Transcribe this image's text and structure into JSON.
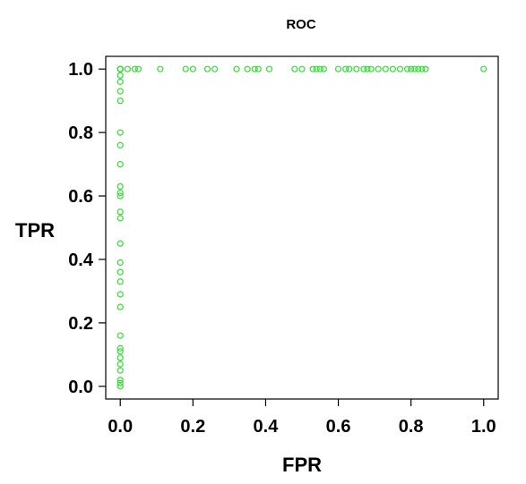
{
  "chart_data": {
    "type": "scatter",
    "title": "ROC",
    "xlabel": "FPR",
    "ylabel": "TPR",
    "xlim": [
      -0.04,
      1.04
    ],
    "ylim": [
      -0.04,
      1.04
    ],
    "xticks": [
      0.0,
      0.2,
      0.4,
      0.6,
      0.8,
      1.0
    ],
    "yticks": [
      0.0,
      0.2,
      0.4,
      0.6,
      0.8,
      1.0
    ],
    "xtick_labels": [
      "0.0",
      "0.2",
      "0.4",
      "0.6",
      "0.8",
      "1.0"
    ],
    "ytick_labels": [
      "0.0",
      "0.2",
      "0.4",
      "0.6",
      "0.8",
      "1.0"
    ],
    "grid": false,
    "marker": "open-circle",
    "point_color": "#33dd33",
    "series": [
      {
        "x": [
          0,
          0,
          0,
          0,
          0,
          0,
          0,
          0,
          0,
          0,
          0,
          0,
          0,
          0,
          0,
          0,
          0,
          0,
          0,
          0,
          0,
          0,
          0,
          0,
          0,
          0,
          0,
          0,
          0,
          0,
          0,
          0,
          0.02,
          0.04,
          0.05,
          0.11,
          0.18,
          0.2,
          0.24,
          0.26,
          0.32,
          0.35,
          0.37,
          0.38,
          0.41,
          0.48,
          0.5,
          0.53,
          0.54,
          0.55,
          0.56,
          0.6,
          0.62,
          0.63,
          0.65,
          0.67,
          0.68,
          0.69,
          0.71,
          0.73,
          0.75,
          0.77,
          0.79,
          0.8,
          0.81,
          0.82,
          0.83,
          0.84,
          1.0
        ],
        "y": [
          0.0,
          0.01,
          0.02,
          0.05,
          0.07,
          0.09,
          0.11,
          0.12,
          0.16,
          0.25,
          0.29,
          0.33,
          0.36,
          0.39,
          0.45,
          0.53,
          0.55,
          0.6,
          0.61,
          0.63,
          0.7,
          0.76,
          0.8,
          0.9,
          0.93,
          0.96,
          0.98,
          1.0,
          1.0,
          1.0,
          1.0,
          1.0,
          1.0,
          1.0,
          1.0,
          1.0,
          1.0,
          1.0,
          1.0,
          1.0,
          1.0,
          1.0,
          1.0,
          1.0,
          1.0,
          1.0,
          1.0,
          1.0,
          1.0,
          1.0,
          1.0,
          1.0,
          1.0,
          1.0,
          1.0,
          1.0,
          1.0,
          1.0,
          1.0,
          1.0,
          1.0,
          1.0,
          1.0,
          1.0,
          1.0,
          1.0,
          1.0,
          1.0,
          1.0
        ]
      }
    ]
  }
}
